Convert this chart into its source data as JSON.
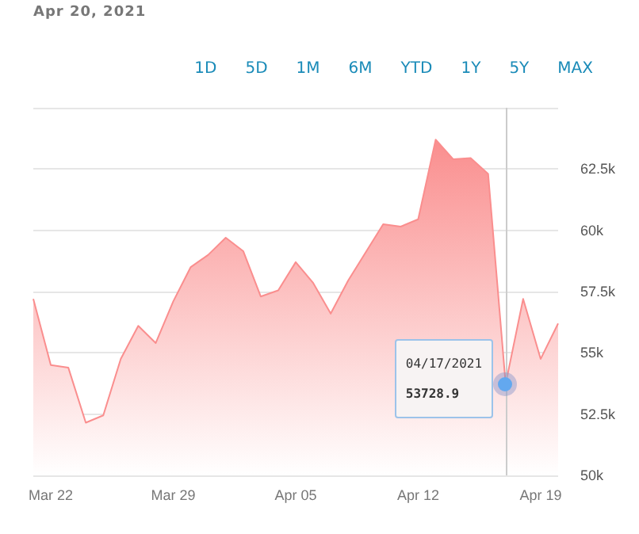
{
  "chart_data": {
    "type": "area",
    "title": "Apr 20, 2021",
    "x": [
      "2021-03-21",
      "2021-03-22",
      "2021-03-23",
      "2021-03-24",
      "2021-03-25",
      "2021-03-26",
      "2021-03-27",
      "2021-03-28",
      "2021-03-29",
      "2021-03-30",
      "2021-03-31",
      "2021-04-01",
      "2021-04-02",
      "2021-04-03",
      "2021-04-04",
      "2021-04-05",
      "2021-04-06",
      "2021-04-07",
      "2021-04-08",
      "2021-04-09",
      "2021-04-10",
      "2021-04-11",
      "2021-04-12",
      "2021-04-13",
      "2021-04-14",
      "2021-04-15",
      "2021-04-16",
      "2021-04-17",
      "2021-04-18",
      "2021-04-19",
      "2021-04-20"
    ],
    "series": [
      {
        "color": "#fa8e8e",
        "values": [
          57200,
          54500,
          54400,
          52150,
          52450,
          54750,
          56100,
          55400,
          57100,
          58500,
          59000,
          59700,
          59150,
          57300,
          57550,
          58700,
          57850,
          56600,
          57950,
          59100,
          60250,
          60150,
          60450,
          63700,
          62900,
          62950,
          62300,
          53728.9,
          57200,
          54750,
          56200
        ]
      }
    ],
    "xlim": [
      "2021-03-21",
      "2021-04-20"
    ],
    "xticks": [
      {
        "value": "2021-03-22",
        "label": "Mar 22"
      },
      {
        "value": "2021-03-29",
        "label": "Mar 29"
      },
      {
        "value": "2021-04-05",
        "label": "Apr 05"
      },
      {
        "value": "2021-04-12",
        "label": "Apr 12"
      },
      {
        "value": "2021-04-19",
        "label": "Apr 19"
      }
    ],
    "ylim": [
      50000,
      65000
    ],
    "yticks": [
      {
        "value": 50000,
        "label": "50k"
      },
      {
        "value": 52500,
        "label": "52.5k"
      },
      {
        "value": 55000,
        "label": "55k"
      },
      {
        "value": 57500,
        "label": "57.5k"
      },
      {
        "value": 60000,
        "label": "60k"
      },
      {
        "value": 62500,
        "label": "62.5k"
      },
      {
        "value": 65000,
        "label": null
      }
    ],
    "grid": "y",
    "marker": "none",
    "ref_lines": [
      {
        "axis": "x",
        "value": "2021-04-17",
        "color": "#cccccc"
      }
    ],
    "annotations": [
      "1D",
      "5D",
      "1M",
      "6M",
      "YTD",
      "1Y",
      "5Y",
      "MAX",
      {
        "text": "04/17/2021",
        "x": "2021-04-17",
        "y": 53728.9
      },
      "53728.9"
    ]
  }
}
